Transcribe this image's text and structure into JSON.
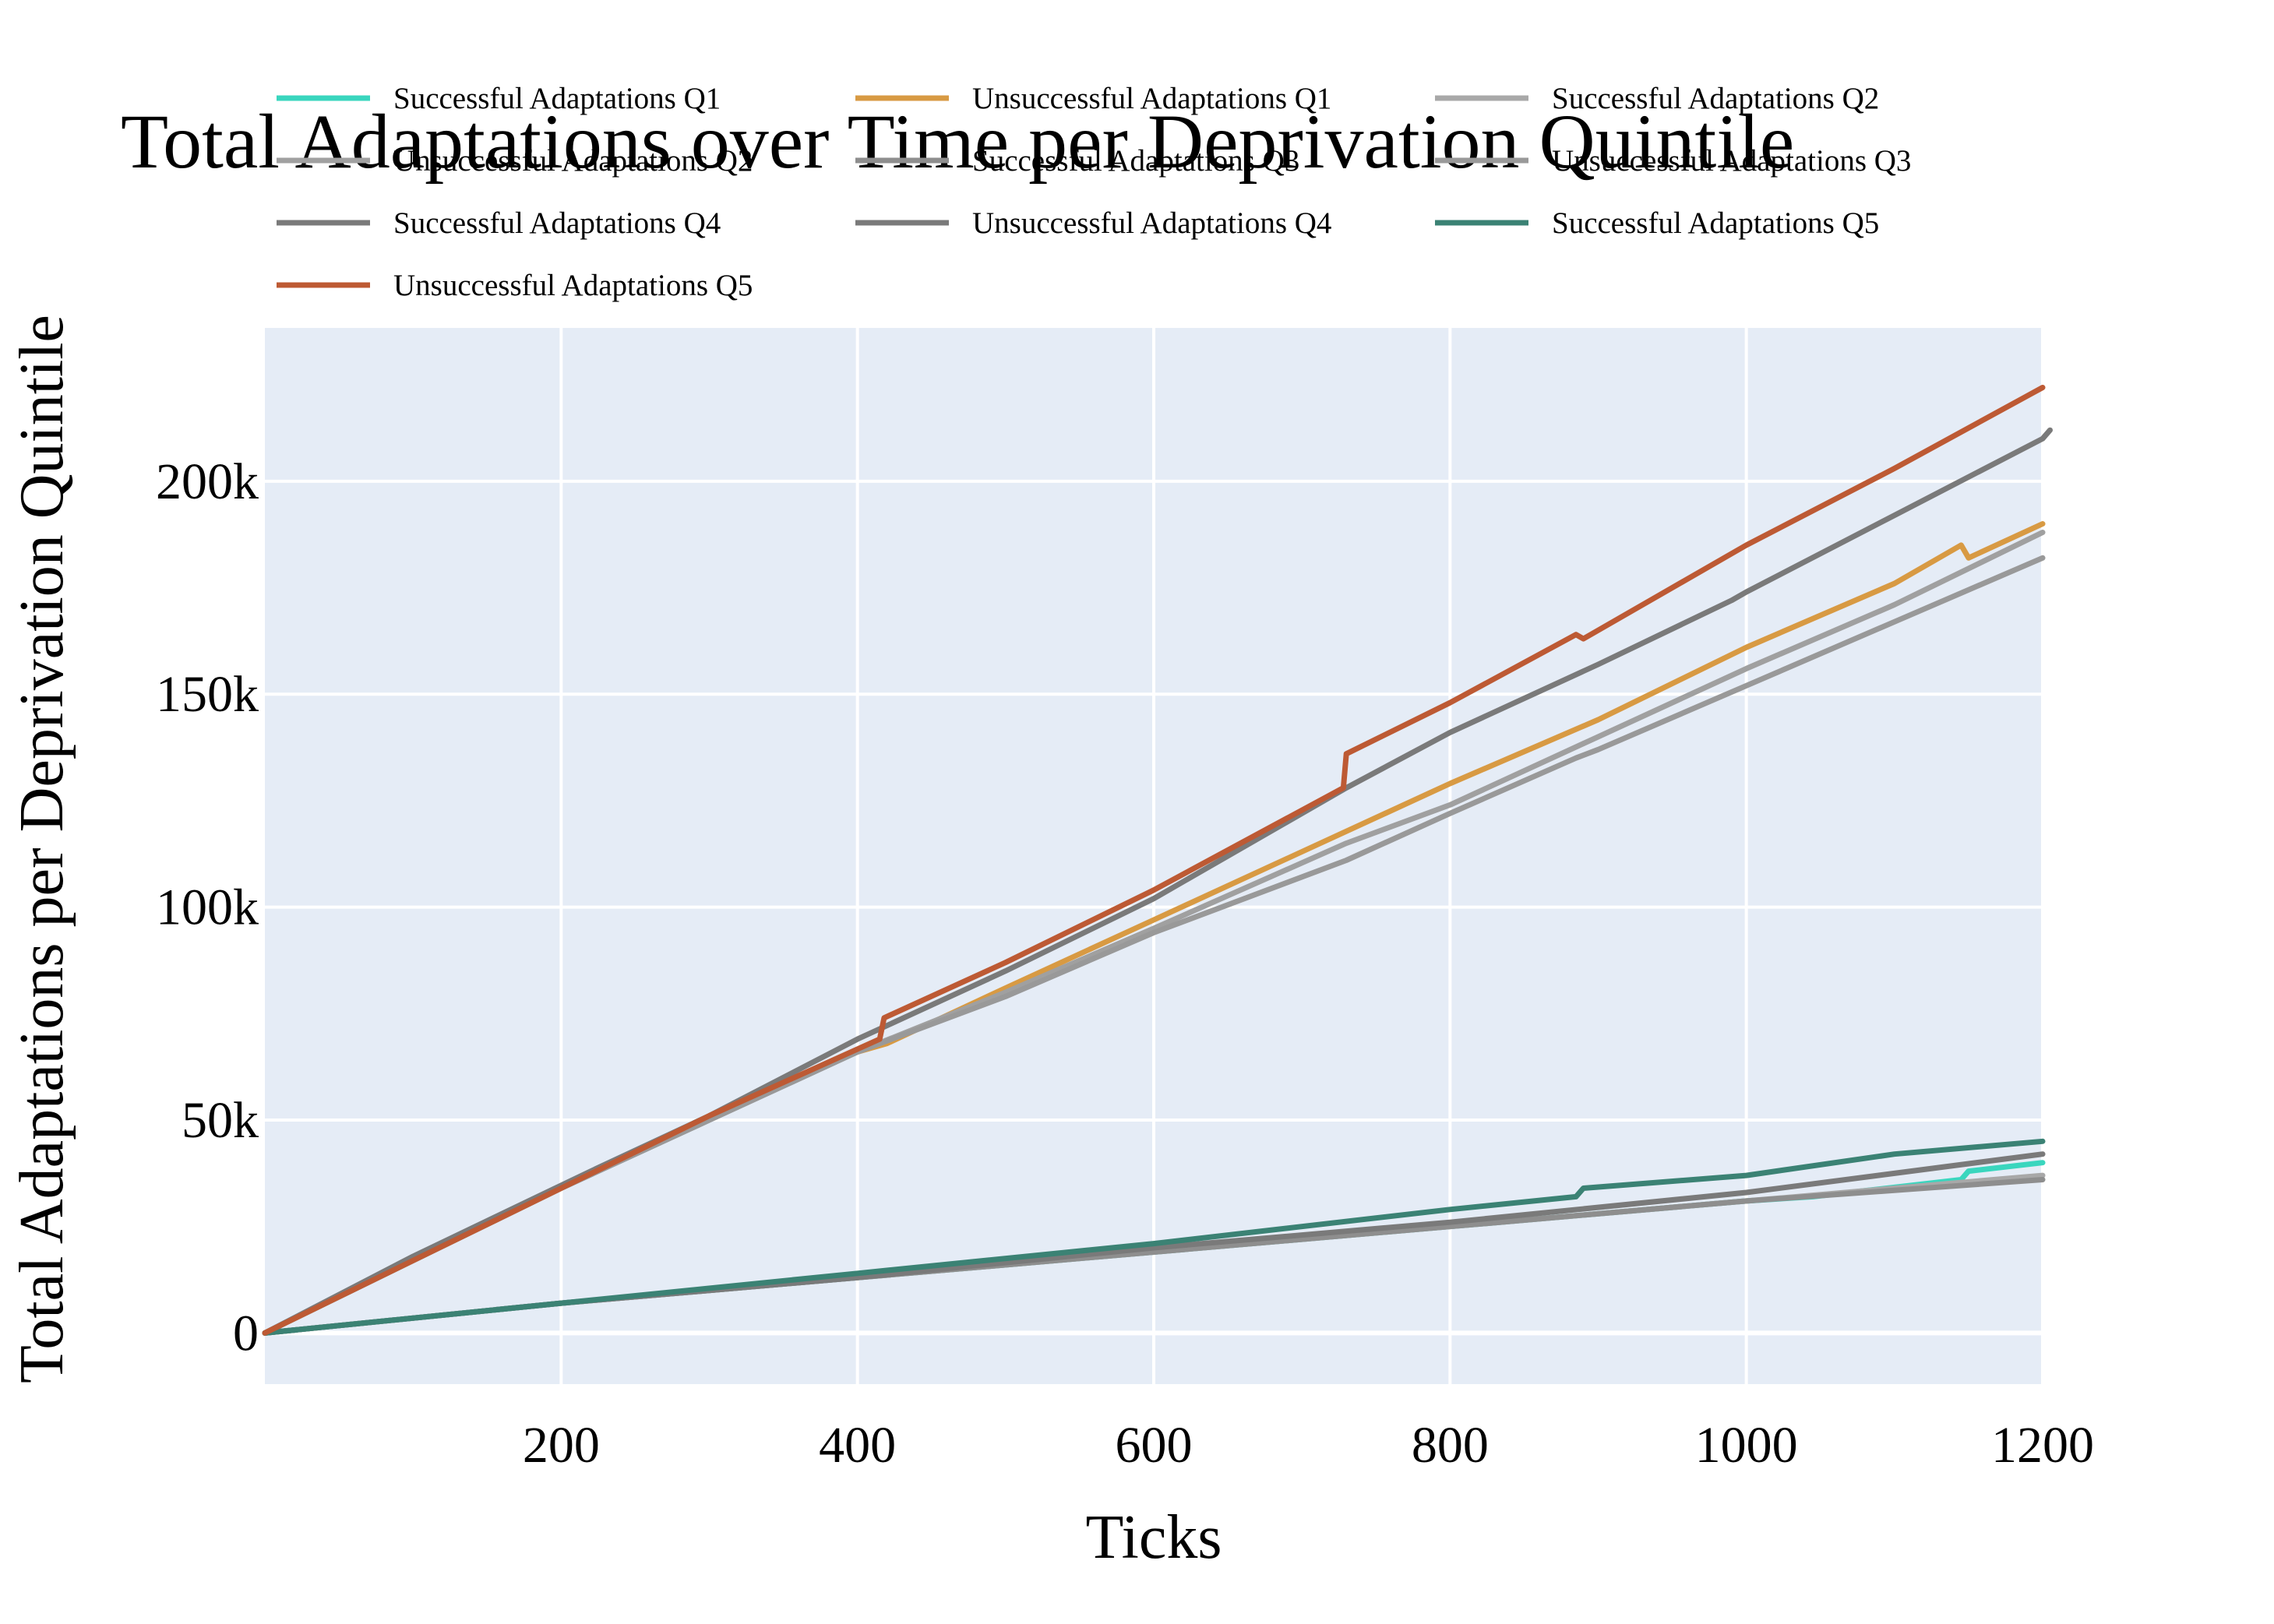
{
  "chart_data": {
    "type": "line",
    "title": "Total Adaptations over Time per Deprivation Quintile",
    "xlabel": "Ticks",
    "ylabel": "Total Adaptations per Deprivation Quintile",
    "xlim": [
      0,
      1200
    ],
    "ylim": [
      -12000,
      236000
    ],
    "x_ticks": [
      200,
      400,
      600,
      800,
      1000,
      1200
    ],
    "x_tick_labels": [
      "200",
      "400",
      "600",
      "800",
      "1000",
      "1200"
    ],
    "y_ticks": [
      0,
      50000,
      100000,
      150000,
      200000
    ],
    "y_tick_labels": [
      "0",
      "50k",
      "100k",
      "150k",
      "200k"
    ],
    "grid": true,
    "legend_position": "top",
    "plot_background": "#e5ecf6",
    "series": [
      {
        "name": "Successful Adaptations Q1",
        "color": "#3ad6be",
        "points": [
          [
            0,
            0
          ],
          [
            200,
            7000
          ],
          [
            400,
            13000
          ],
          [
            600,
            19000
          ],
          [
            800,
            25000
          ],
          [
            1000,
            31000
          ],
          [
            1045,
            32000
          ],
          [
            1145,
            36000
          ],
          [
            1150,
            38000
          ],
          [
            1200,
            40000
          ]
        ]
      },
      {
        "name": "Unsuccessful Adaptations Q1",
        "color": "#d89a43",
        "points": [
          [
            0,
            0
          ],
          [
            100,
            17000
          ],
          [
            200,
            34000
          ],
          [
            300,
            51000
          ],
          [
            400,
            66000
          ],
          [
            420,
            68000
          ],
          [
            500,
            81000
          ],
          [
            600,
            97000
          ],
          [
            700,
            113000
          ],
          [
            800,
            129000
          ],
          [
            900,
            144000
          ],
          [
            1000,
            161000
          ],
          [
            1100,
            176000
          ],
          [
            1145,
            185000
          ],
          [
            1150,
            182000
          ],
          [
            1200,
            190000
          ]
        ]
      },
      {
        "name": "Successful Adaptations Q2",
        "color": "#a8a8a8",
        "points": [
          [
            0,
            0
          ],
          [
            200,
            7000
          ],
          [
            400,
            13000
          ],
          [
            600,
            19000
          ],
          [
            800,
            25000
          ],
          [
            1000,
            31000
          ],
          [
            1200,
            37000
          ]
        ]
      },
      {
        "name": "Unsuccessful Adaptations Q2",
        "color": "#a0a0a0",
        "points": [
          [
            0,
            0
          ],
          [
            100,
            17000
          ],
          [
            200,
            34000
          ],
          [
            300,
            50000
          ],
          [
            400,
            66000
          ],
          [
            500,
            80000
          ],
          [
            600,
            95000
          ],
          [
            730,
            115000
          ],
          [
            800,
            124000
          ],
          [
            900,
            140000
          ],
          [
            1000,
            156000
          ],
          [
            1100,
            171000
          ],
          [
            1200,
            188000
          ]
        ]
      },
      {
        "name": "Successful Adaptations Q3",
        "color": "#8e8e8e",
        "points": [
          [
            0,
            0
          ],
          [
            200,
            7000
          ],
          [
            400,
            13000
          ],
          [
            600,
            19000
          ],
          [
            800,
            25000
          ],
          [
            1000,
            31000
          ],
          [
            1200,
            36000
          ]
        ]
      },
      {
        "name": "Unsuccessful Adaptations Q3",
        "color": "#999999",
        "points": [
          [
            0,
            0
          ],
          [
            100,
            17000
          ],
          [
            200,
            34000
          ],
          [
            300,
            50000
          ],
          [
            400,
            66000
          ],
          [
            500,
            79000
          ],
          [
            600,
            94000
          ],
          [
            730,
            111000
          ],
          [
            800,
            122000
          ],
          [
            885,
            135000
          ],
          [
            900,
            137000
          ],
          [
            1000,
            152000
          ],
          [
            1100,
            167000
          ],
          [
            1200,
            182000
          ]
        ]
      },
      {
        "name": "Successful Adaptations Q4",
        "color": "#7a7a7a",
        "points": [
          [
            0,
            0
          ],
          [
            200,
            7000
          ],
          [
            400,
            13000
          ],
          [
            600,
            20000
          ],
          [
            800,
            26000
          ],
          [
            1000,
            33000
          ],
          [
            1200,
            42000
          ]
        ]
      },
      {
        "name": "Unsuccessful Adaptations Q4",
        "color": "#7a7a7a",
        "points": [
          [
            0,
            0
          ],
          [
            100,
            18000
          ],
          [
            160,
            28000
          ],
          [
            220,
            38000
          ],
          [
            300,
            51000
          ],
          [
            400,
            69000
          ],
          [
            500,
            85000
          ],
          [
            600,
            102000
          ],
          [
            730,
            128000
          ],
          [
            800,
            141000
          ],
          [
            900,
            157000
          ],
          [
            990,
            172000
          ],
          [
            1000,
            174000
          ],
          [
            1100,
            192000
          ],
          [
            1200,
            210000
          ],
          [
            1205,
            212000
          ]
        ]
      },
      {
        "name": "Successful Adaptations Q5",
        "color": "#3b8274",
        "points": [
          [
            0,
            0
          ],
          [
            200,
            7000
          ],
          [
            400,
            14000
          ],
          [
            600,
            21000
          ],
          [
            800,
            29000
          ],
          [
            885,
            32000
          ],
          [
            890,
            34000
          ],
          [
            1000,
            37000
          ],
          [
            1100,
            42000
          ],
          [
            1200,
            45000
          ]
        ]
      },
      {
        "name": "Unsuccessful Adaptations Q5",
        "color": "#bd5a34",
        "points": [
          [
            0,
            0
          ],
          [
            100,
            17000
          ],
          [
            200,
            34000
          ],
          [
            300,
            51000
          ],
          [
            415,
            69000
          ],
          [
            418,
            74000
          ],
          [
            500,
            87000
          ],
          [
            600,
            104000
          ],
          [
            728,
            128000
          ],
          [
            730,
            136000
          ],
          [
            800,
            148000
          ],
          [
            885,
            164000
          ],
          [
            890,
            163000
          ],
          [
            1000,
            185000
          ],
          [
            1100,
            203000
          ],
          [
            1200,
            222000
          ]
        ]
      }
    ]
  }
}
